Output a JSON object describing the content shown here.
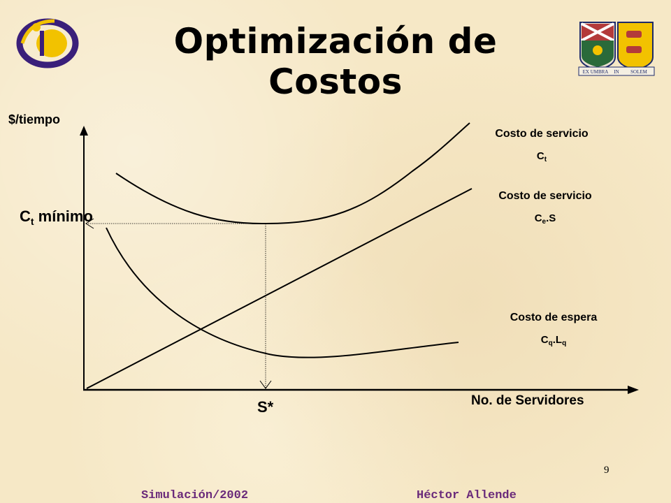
{
  "title": "Optimización de Costos",
  "axes": {
    "y_label": "$/tiempo",
    "x_label": "No. de Servidores"
  },
  "annotations": {
    "ct_min_main": "C",
    "ct_min_sub": "t",
    "ct_min_rest": " mínimo",
    "s_star": "S*"
  },
  "series": [
    {
      "name": "Costo de servicio",
      "formula_main_1": "C",
      "formula_sub_1": "t",
      "formula_main_2": "",
      "formula_sub_2": "",
      "formula_end": ""
    },
    {
      "name": "Costo de servicio",
      "formula_main_1": "C",
      "formula_sub_1": "e",
      "formula_main_2": ".S",
      "formula_sub_2": "",
      "formula_end": ""
    },
    {
      "name": "Costo de espera",
      "formula_main_1": "C",
      "formula_sub_1": "q",
      "formula_main_2": ".L",
      "formula_sub_2": "q",
      "formula_end": ""
    }
  ],
  "logo_right": {
    "motto_left": "EX UMBRA",
    "motto_mid": "IN",
    "motto_right": "SOLEM"
  },
  "page_number": "9",
  "footer": {
    "left": "Simulación/2002",
    "right": "Héctor Allende"
  },
  "colors": {
    "background": "#f6e8c6",
    "footer_text": "#6a2a7a",
    "logo_purple": "#3a1f7a",
    "logo_yellow": "#f2c200"
  }
}
